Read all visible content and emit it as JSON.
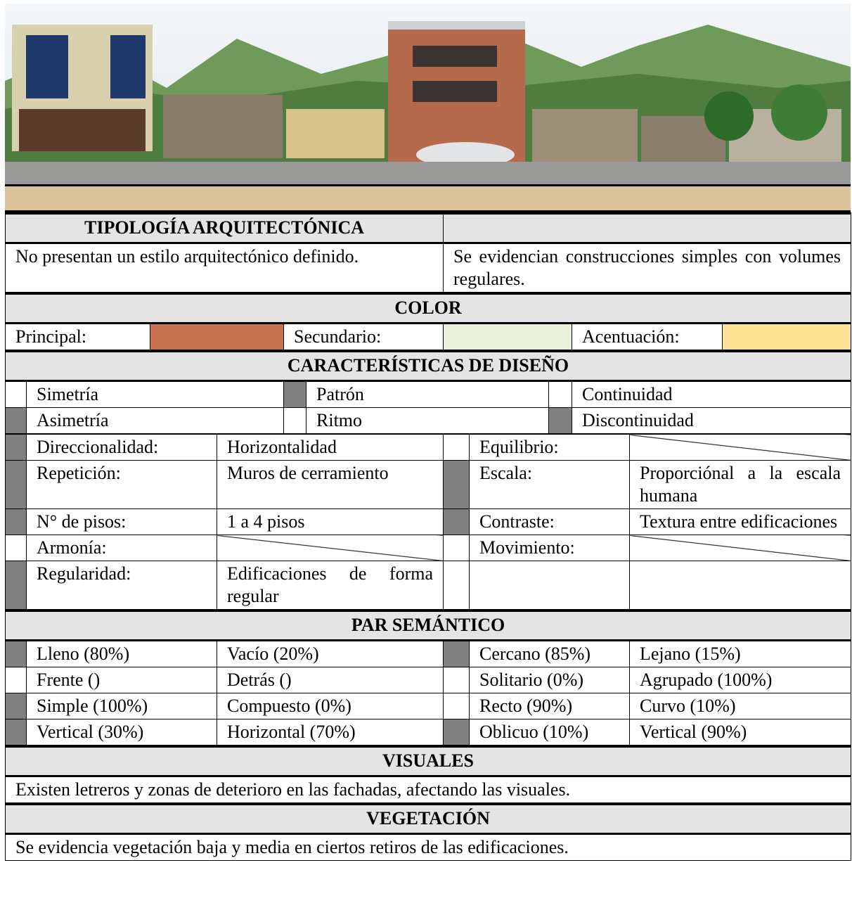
{
  "typology": {
    "title": "TIPOLOGÍA ARQUITECTÓNICA",
    "left": "No presentan un estilo arquitectónico definido.",
    "right": "Se evidencian construcciones simples con volumes regulares."
  },
  "color": {
    "title": "COLOR",
    "items": [
      {
        "label": "Principal:",
        "swatch": "#c8714f"
      },
      {
        "label": "Secundario:",
        "swatch": "#e9f1dc"
      },
      {
        "label": "Acentuación:",
        "swatch": "#fde295"
      }
    ]
  },
  "design": {
    "title": "CARACTERÍSTICAS DE DISEÑO",
    "options": [
      [
        {
          "label": "Simetría",
          "checked": false
        },
        {
          "label": "Patrón",
          "checked": true
        },
        {
          "label": "Continuidad",
          "checked": false
        }
      ],
      [
        {
          "label": "Asimetría",
          "checked": true
        },
        {
          "label": "Ritmo",
          "checked": false
        },
        {
          "label": "Discontinuidad",
          "checked": true
        }
      ]
    ],
    "attributes": [
      {
        "left": {
          "label": "Direccionalidad:",
          "value": "Horizontalidad",
          "checked": true
        },
        "right": {
          "label": "Equilibrio:",
          "checked": false
        }
      },
      {
        "left": {
          "label": "Repetición:",
          "value": "Muros de cerramiento",
          "checked": true
        },
        "right": {
          "label": "Escala:",
          "value": "Proporciónal a la escala humana",
          "checked": true
        }
      },
      {
        "left": {
          "label": "N° de pisos:",
          "value": "1 a 4 pisos",
          "checked": true
        },
        "right": {
          "label": "Contraste:",
          "value": "Textura entre edificaciones",
          "checked": true
        }
      },
      {
        "left": {
          "label": "Armonía:",
          "checked": false
        },
        "right": {
          "label": "Movimiento:",
          "checked": false
        }
      },
      {
        "left": {
          "label": "Regularidad:",
          "value": "Edificaciones de forma regular",
          "checked": true
        }
      }
    ]
  },
  "semantic": {
    "title": "PAR SEMÁNTICO",
    "rows": [
      [
        {
          "checked": true,
          "a": "Lleno (80%)",
          "b": "Vacío (20%)"
        },
        {
          "checked": true,
          "a": "Cercano (85%)",
          "b": "Lejano (15%)"
        }
      ],
      [
        {
          "checked": false,
          "a": "Frente ()",
          "b": "Detrás ()"
        },
        {
          "checked": false,
          "a": "Solitario (0%)",
          "b": "Agrupado (100%)"
        }
      ],
      [
        {
          "checked": true,
          "a": "Simple (100%)",
          "b": "Compuesto (0%)"
        },
        {
          "checked": false,
          "a": "Recto (90%)",
          "b": "Curvo (10%)"
        }
      ],
      [
        {
          "checked": true,
          "a": "Vertical (30%)",
          "b": "Horizontal (70%)"
        },
        {
          "checked": true,
          "a": "Oblicuo (10%)",
          "b": "Vertical (90%)"
        }
      ]
    ]
  },
  "visuals": {
    "title": "VISUALES",
    "text": "Existen letreros y zonas de deterioro en las fachadas, afectando las visuales."
  },
  "vegetation": {
    "title": "VEGETACIÓN",
    "text": "Se evidencia vegetación baja y media en ciertos retiros de las edificaciones."
  }
}
